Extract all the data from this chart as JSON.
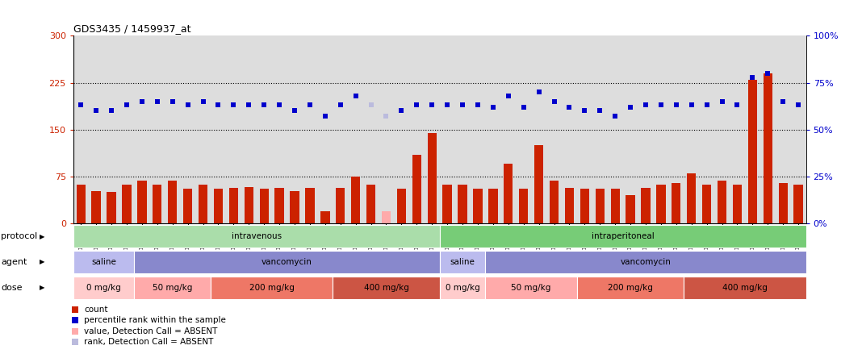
{
  "title": "GDS3435 / 1459937_at",
  "samples": [
    "GSM189045",
    "GSM189047",
    "GSM189048",
    "GSM189049",
    "GSM189050",
    "GSM189051",
    "GSM189052",
    "GSM189053",
    "GSM189054",
    "GSM189055",
    "GSM189056",
    "GSM189057",
    "GSM189058",
    "GSM189059",
    "GSM189060",
    "GSM189062",
    "GSM189063",
    "GSM189064",
    "GSM189065",
    "GSM189066",
    "GSM189068",
    "GSM189069",
    "GSM189070",
    "GSM189071",
    "GSM189072",
    "GSM189073",
    "GSM189074",
    "GSM189075",
    "GSM189076",
    "GSM189077",
    "GSM189078",
    "GSM189079",
    "GSM189080",
    "GSM189081",
    "GSM189082",
    "GSM189083",
    "GSM189084",
    "GSM189085",
    "GSM189086",
    "GSM189087",
    "GSM189088",
    "GSM189089",
    "GSM189090",
    "GSM189091",
    "GSM189092",
    "GSM189093",
    "GSM189094",
    "GSM189095"
  ],
  "bar_values": [
    62,
    52,
    50,
    62,
    68,
    62,
    68,
    56,
    62,
    55,
    57,
    58,
    56,
    57,
    52,
    57,
    20,
    57,
    75,
    62,
    20,
    55,
    110,
    145,
    62,
    62,
    56,
    55,
    95,
    56,
    125,
    68,
    57,
    55,
    56,
    55,
    45,
    57,
    62,
    65,
    80,
    62,
    68,
    62,
    230,
    240,
    65,
    62
  ],
  "bar_absent": [
    0,
    0,
    0,
    0,
    0,
    0,
    0,
    0,
    0,
    0,
    0,
    0,
    0,
    0,
    0,
    0,
    0,
    0,
    0,
    0,
    1,
    0,
    0,
    0,
    0,
    0,
    0,
    0,
    0,
    0,
    0,
    0,
    0,
    0,
    0,
    0,
    0,
    0,
    0,
    0,
    0,
    0,
    0,
    0,
    0,
    0,
    0,
    0
  ],
  "rank_values": [
    63,
    60,
    60,
    63,
    65,
    65,
    65,
    63,
    65,
    63,
    63,
    63,
    63,
    63,
    60,
    63,
    57,
    63,
    68,
    63,
    57,
    60,
    63,
    63,
    63,
    63,
    63,
    62,
    68,
    62,
    70,
    65,
    62,
    60,
    60,
    57,
    62,
    63,
    63,
    63,
    63,
    63,
    65,
    63,
    78,
    80,
    65,
    63
  ],
  "rank_absent": [
    0,
    0,
    0,
    0,
    0,
    0,
    0,
    0,
    0,
    0,
    0,
    0,
    0,
    0,
    0,
    0,
    0,
    0,
    0,
    1,
    1,
    0,
    0,
    0,
    0,
    0,
    0,
    0,
    0,
    0,
    0,
    0,
    0,
    0,
    0,
    0,
    0,
    0,
    0,
    0,
    0,
    0,
    0,
    0,
    0,
    0,
    0,
    0
  ],
  "ylim_left": [
    0,
    300
  ],
  "ylim_right": [
    0,
    100
  ],
  "yticks_left": [
    0,
    75,
    150,
    225,
    300
  ],
  "yticks_right": [
    0,
    25,
    50,
    75,
    100
  ],
  "hlines": [
    75,
    150,
    225
  ],
  "bar_color": "#CC2200",
  "bar_absent_color": "#FFAAAA",
  "rank_color": "#0000CC",
  "rank_absent_color": "#BBBBDD",
  "protocol_groups": [
    {
      "label": "intravenous",
      "start": 0,
      "end": 24,
      "color": "#AADDAA"
    },
    {
      "label": "intraperitoneal",
      "start": 24,
      "end": 48,
      "color": "#77CC77"
    }
  ],
  "agent_groups": [
    {
      "label": "saline",
      "start": 0,
      "end": 4,
      "color": "#BBBBEE"
    },
    {
      "label": "vancomycin",
      "start": 4,
      "end": 24,
      "color": "#8888CC"
    },
    {
      "label": "saline",
      "start": 24,
      "end": 27,
      "color": "#BBBBEE"
    },
    {
      "label": "vancomycin",
      "start": 27,
      "end": 48,
      "color": "#8888CC"
    }
  ],
  "dose_groups": [
    {
      "label": "0 mg/kg",
      "start": 0,
      "end": 4,
      "color": "#FFCCCC"
    },
    {
      "label": "50 mg/kg",
      "start": 4,
      "end": 9,
      "color": "#FFAAAA"
    },
    {
      "label": "200 mg/kg",
      "start": 9,
      "end": 17,
      "color": "#EE7766"
    },
    {
      "label": "400 mg/kg",
      "start": 17,
      "end": 24,
      "color": "#CC5544"
    },
    {
      "label": "0 mg/kg",
      "start": 24,
      "end": 27,
      "color": "#FFCCCC"
    },
    {
      "label": "50 mg/kg",
      "start": 27,
      "end": 33,
      "color": "#FFAAAA"
    },
    {
      "label": "200 mg/kg",
      "start": 33,
      "end": 40,
      "color": "#EE7766"
    },
    {
      "label": "400 mg/kg",
      "start": 40,
      "end": 48,
      "color": "#CC5544"
    }
  ],
  "legend_items": [
    {
      "label": "count",
      "color": "#CC2200"
    },
    {
      "label": "percentile rank within the sample",
      "color": "#0000CC"
    },
    {
      "label": "value, Detection Call = ABSENT",
      "color": "#FFAAAA"
    },
    {
      "label": "rank, Detection Call = ABSENT",
      "color": "#BBBBDD"
    }
  ],
  "row_labels": [
    "protocol",
    "agent",
    "dose"
  ],
  "left_axis_color": "#CC2200",
  "right_axis_color": "#0000CC",
  "chart_bg": "#DDDDDD"
}
